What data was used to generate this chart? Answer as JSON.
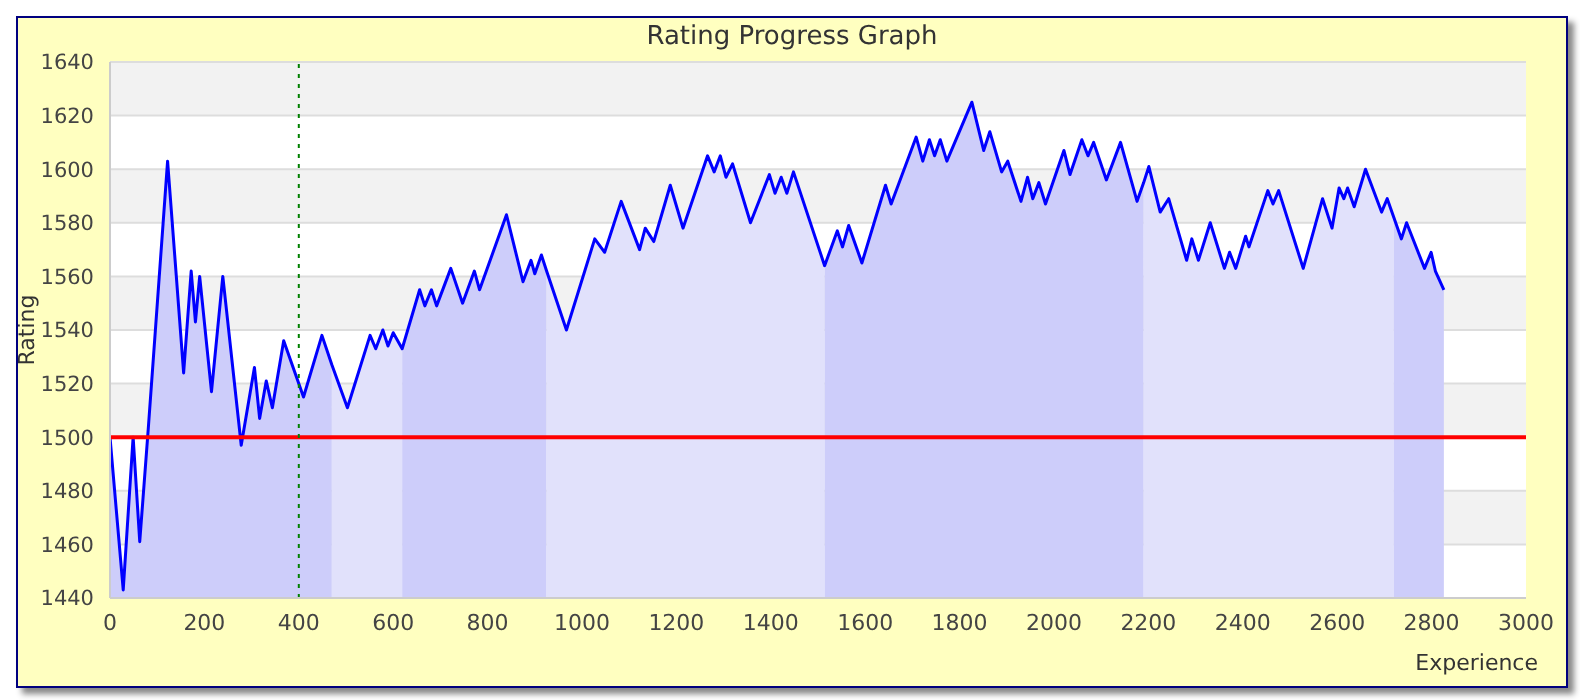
{
  "chart_data": {
    "type": "area",
    "title": "Rating Progress Graph",
    "xlabel": "Experience",
    "ylabel": "Rating",
    "xlim": [
      0,
      3000
    ],
    "xticks": [
      0,
      200,
      400,
      600,
      800,
      1000,
      1200,
      1400,
      1600,
      1800,
      2000,
      2200,
      2400,
      2600,
      2800,
      3000
    ],
    "ylim": [
      1440,
      1640
    ],
    "yticks": [
      1440,
      1460,
      1480,
      1500,
      1520,
      1540,
      1560,
      1580,
      1600,
      1620,
      1640
    ],
    "grid": "y",
    "series": [
      {
        "color": "#cdcdfa",
        "x": [
          0,
          28,
          49,
          63,
          81,
          122,
          156,
          172,
          181,
          190,
          215,
          239,
          278,
          306,
          317,
          331,
          344,
          368,
          410,
          449,
          470
        ],
        "values": [
          1500,
          1443,
          1500,
          1461,
          1503,
          1603,
          1524,
          1562,
          1543,
          1560,
          1517,
          1560,
          1497,
          1526,
          1507,
          1521,
          1511,
          1536,
          1515,
          1538,
          1527
        ]
      },
      {
        "color": "#e1e1fb",
        "x": [
          470,
          503,
          551,
          563,
          578,
          589,
          600,
          619
        ],
        "values": [
          1527,
          1511,
          1538,
          1533,
          1540,
          1534,
          1539,
          1533
        ]
      },
      {
        "color": "#cdcdfa",
        "x": [
          619,
          656,
          667,
          681,
          692,
          722,
          747,
          772,
          783,
          840,
          875,
          892,
          900,
          914,
          925
        ],
        "values": [
          1533,
          1555,
          1549,
          1555,
          1549,
          1563,
          1550,
          1562,
          1555,
          1583,
          1558,
          1566,
          1561,
          1568,
          1562
        ]
      },
      {
        "color": "#e1e1fb",
        "x": [
          925,
          967,
          1027,
          1048,
          1083,
          1122,
          1134,
          1152,
          1187,
          1214,
          1266,
          1280,
          1293,
          1305,
          1319,
          1357,
          1397,
          1409,
          1422,
          1434,
          1448,
          1514
        ],
        "values": [
          1562,
          1540,
          1574,
          1569,
          1588,
          1570,
          1578,
          1573,
          1594,
          1578,
          1605,
          1599,
          1605,
          1597,
          1602,
          1580,
          1598,
          1591,
          1597,
          1591,
          1599,
          1564
        ]
      },
      {
        "color": "#cdcdfa",
        "x": [
          1514,
          1541,
          1552,
          1565,
          1593,
          1643,
          1655,
          1708,
          1722,
          1736,
          1747,
          1759,
          1773,
          1826,
          1851,
          1864,
          1889,
          1902,
          1930,
          1944,
          1955,
          1968,
          1982,
          2021,
          2034,
          2059,
          2072,
          2084,
          2111,
          2141,
          2176,
          2190
        ],
        "values": [
          1564,
          1577,
          1571,
          1579,
          1565,
          1594,
          1587,
          1612,
          1603,
          1611,
          1605,
          1611,
          1603,
          1625,
          1607,
          1614,
          1599,
          1603,
          1588,
          1597,
          1589,
          1595,
          1587,
          1607,
          1598,
          1611,
          1605,
          1610,
          1596,
          1610,
          1588,
          1595
        ]
      },
      {
        "color": "#e1e1fb",
        "x": [
          2190,
          2201,
          2225,
          2243,
          2281,
          2292,
          2306,
          2331,
          2361,
          2372,
          2385,
          2406,
          2413,
          2453,
          2464,
          2476,
          2528,
          2569,
          2589,
          2604,
          2614,
          2622,
          2636,
          2660,
          2694,
          2706,
          2720
        ],
        "values": [
          1595,
          1601,
          1584,
          1589,
          1566,
          1574,
          1566,
          1580,
          1563,
          1569,
          1563,
          1575,
          1571,
          1592,
          1587,
          1592,
          1563,
          1589,
          1578,
          1593,
          1589,
          1593,
          1586,
          1600,
          1584,
          1589,
          1582
        ]
      },
      {
        "color": "#cdcdfa",
        "x": [
          2720,
          2736,
          2747,
          2785,
          2799,
          2808,
          2826
        ],
        "values": [
          1582,
          1574,
          1580,
          1563,
          1569,
          1562,
          1555
        ]
      },
      {
        "type": "line",
        "color": "#0000ff",
        "x": [
          0,
          28,
          49,
          63,
          81,
          122,
          156,
          172,
          181,
          190,
          215,
          239,
          278,
          306,
          317,
          331,
          344,
          368,
          410,
          449,
          470,
          503,
          551,
          563,
          578,
          589,
          600,
          619,
          656,
          667,
          681,
          692,
          722,
          747,
          772,
          783,
          840,
          875,
          892,
          900,
          914,
          925,
          967,
          1027,
          1048,
          1083,
          1122,
          1134,
          1152,
          1187,
          1214,
          1266,
          1280,
          1293,
          1305,
          1319,
          1357,
          1397,
          1409,
          1422,
          1434,
          1448,
          1514,
          1541,
          1552,
          1565,
          1593,
          1643,
          1655,
          1708,
          1722,
          1736,
          1747,
          1759,
          1773,
          1826,
          1851,
          1864,
          1889,
          1902,
          1930,
          1944,
          1955,
          1968,
          1982,
          2021,
          2034,
          2059,
          2072,
          2084,
          2111,
          2141,
          2176,
          2190,
          2201,
          2225,
          2243,
          2281,
          2292,
          2306,
          2331,
          2361,
          2372,
          2385,
          2406,
          2413,
          2453,
          2464,
          2476,
          2528,
          2569,
          2589,
          2604,
          2614,
          2622,
          2636,
          2660,
          2694,
          2706,
          2720,
          2736,
          2747,
          2785,
          2799,
          2808,
          2826
        ],
        "values": [
          1500,
          1443,
          1500,
          1461,
          1503,
          1603,
          1524,
          1562,
          1543,
          1560,
          1517,
          1560,
          1497,
          1526,
          1507,
          1521,
          1511,
          1536,
          1515,
          1538,
          1527,
          1511,
          1538,
          1533,
          1540,
          1534,
          1539,
          1533,
          1555,
          1549,
          1555,
          1549,
          1563,
          1550,
          1562,
          1555,
          1583,
          1558,
          1566,
          1561,
          1568,
          1562,
          1540,
          1574,
          1569,
          1588,
          1570,
          1578,
          1573,
          1594,
          1578,
          1605,
          1599,
          1605,
          1597,
          1602,
          1580,
          1598,
          1591,
          1597,
          1591,
          1599,
          1564,
          1577,
          1571,
          1579,
          1565,
          1594,
          1587,
          1612,
          1603,
          1611,
          1605,
          1611,
          1603,
          1625,
          1607,
          1614,
          1599,
          1603,
          1588,
          1597,
          1589,
          1595,
          1587,
          1607,
          1598,
          1611,
          1605,
          1610,
          1596,
          1610,
          1588,
          1595,
          1601,
          1584,
          1589,
          1566,
          1574,
          1566,
          1580,
          1563,
          1569,
          1563,
          1575,
          1571,
          1592,
          1587,
          1592,
          1563,
          1589,
          1578,
          1593,
          1589,
          1593,
          1586,
          1600,
          1584,
          1589,
          1582,
          1574,
          1580,
          1563,
          1569,
          1562,
          1555
        ]
      }
    ],
    "ref_lines": [
      {
        "axis": "y",
        "value": 1500,
        "color": "#ff0000",
        "line_style": "solid"
      },
      {
        "axis": "x",
        "value": 400,
        "color": "#008000",
        "line_style": "dotted"
      }
    ]
  }
}
